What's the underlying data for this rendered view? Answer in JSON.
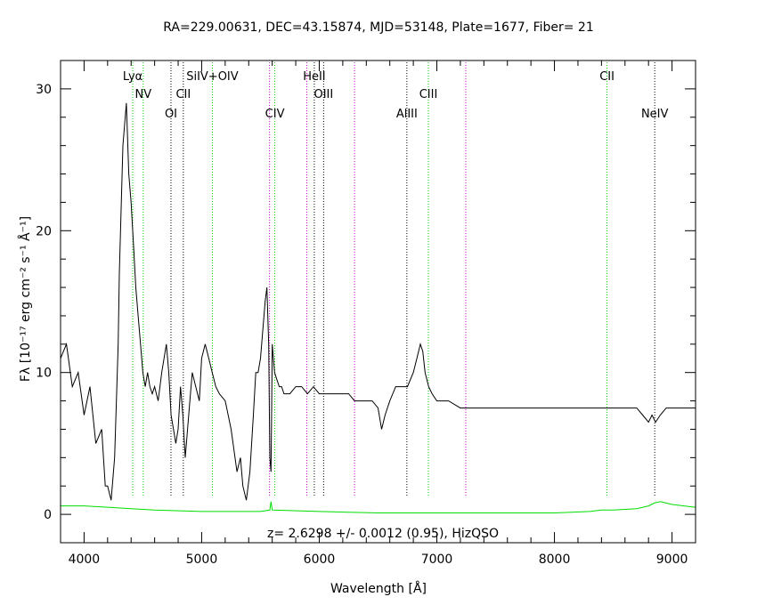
{
  "chart_data": {
    "type": "line",
    "title": "RA=229.00631, DEC=43.15874, MJD=53148, Plate=1677, Fiber= 21",
    "xlabel": "Wavelength [Å]",
    "ylabel": "Fλ [10⁻¹⁷ erg cm⁻² s⁻¹ Å⁻¹]",
    "annotation": "z= 2.6298 +/- 0.0012 (0.95), HizQSO",
    "xlim": [
      3800,
      9200
    ],
    "ylim": [
      -2,
      32
    ],
    "xticks": [
      4000,
      5000,
      6000,
      7000,
      8000,
      9000
    ],
    "yticks": [
      0,
      10,
      20,
      30
    ],
    "xtick_labels": [
      "4000",
      "5000",
      "6000",
      "7000",
      "8000",
      "9000"
    ],
    "ytick_labels": [
      "0",
      "10",
      "20",
      "30"
    ],
    "colors": {
      "spectrum": "#000000",
      "error": "#00dd00",
      "emission_line": "#00cc00",
      "absorption_line": "#000000",
      "sky_line": "#cc00cc"
    },
    "series": [
      {
        "x": [
          3800,
          3850,
          3900,
          3950,
          4000,
          4050,
          4100,
          4150,
          4180,
          4200,
          4230,
          4260,
          4290,
          4300,
          4330,
          4360,
          4380,
          4400,
          4420,
          4440,
          4460,
          4480,
          4500,
          4520,
          4540,
          4560,
          4580,
          4600,
          4630,
          4660,
          4700,
          4720,
          4740,
          4760,
          4780,
          4800,
          4820,
          4840,
          4860,
          4880,
          4900,
          4920,
          4950,
          4980,
          5000,
          5030,
          5060,
          5090,
          5120,
          5150,
          5200,
          5250,
          5300,
          5330,
          5350,
          5380,
          5410,
          5440,
          5460,
          5480,
          5500,
          5520,
          5540,
          5555,
          5570,
          5580,
          5590,
          5600,
          5610,
          5620,
          5640,
          5660,
          5680,
          5700,
          5750,
          5800,
          5850,
          5900,
          5950,
          6000,
          6050,
          6100,
          6150,
          6200,
          6250,
          6300,
          6350,
          6400,
          6450,
          6500,
          6530,
          6560,
          6600,
          6650,
          6700,
          6750,
          6800,
          6830,
          6860,
          6880,
          6900,
          6930,
          6960,
          7000,
          7050,
          7100,
          7200,
          7300,
          7400,
          7500,
          7600,
          7700,
          7800,
          7900,
          8000,
          8100,
          8200,
          8300,
          8400,
          8500,
          8600,
          8700,
          8750,
          8800,
          8830,
          8860,
          8900,
          8950,
          9000,
          9050,
          9100,
          9150,
          9200
        ],
        "values": [
          11.0,
          12.0,
          9.0,
          10.0,
          7.0,
          9.0,
          5.0,
          6.0,
          2.0,
          2.0,
          1.0,
          4.0,
          12.0,
          17.0,
          26.0,
          29.0,
          24.0,
          22.0,
          19.0,
          16.0,
          14.0,
          12.0,
          10.0,
          9.0,
          10.0,
          9.0,
          8.5,
          9.0,
          8.0,
          10.0,
          12.0,
          10.0,
          7.0,
          6.0,
          5.0,
          6.0,
          9.0,
          7.0,
          4.0,
          6.0,
          8.0,
          10.0,
          9.0,
          8.0,
          11.0,
          12.0,
          11.0,
          10.0,
          9.0,
          8.5,
          8.0,
          6.0,
          3.0,
          4.0,
          2.0,
          1.0,
          3.0,
          7.0,
          10.0,
          10.0,
          11.0,
          13.0,
          15.0,
          16.0,
          12.0,
          4.0,
          3.0,
          12.0,
          11.0,
          10.0,
          9.5,
          9.0,
          9.0,
          8.5,
          8.5,
          9.0,
          9.0,
          8.5,
          9.0,
          8.5,
          8.5,
          8.5,
          8.5,
          8.5,
          8.5,
          8.0,
          8.0,
          8.0,
          8.0,
          7.5,
          6.0,
          7.0,
          8.0,
          9.0,
          9.0,
          9.0,
          10.0,
          11.0,
          12.0,
          11.5,
          10.0,
          9.0,
          8.5,
          8.0,
          8.0,
          8.0,
          7.5,
          7.5,
          7.5,
          7.5,
          7.5,
          7.5,
          7.5,
          7.5,
          7.5,
          7.5,
          7.5,
          7.5,
          7.5,
          7.5,
          7.5,
          7.5,
          7.0,
          6.5,
          7.0,
          6.5,
          7.0,
          7.5,
          7.5,
          7.5,
          7.5,
          7.5,
          7.5
        ]
      },
      {
        "x": [
          3800,
          4000,
          4200,
          4400,
          4600,
          5000,
          5500,
          5580,
          5590,
          5600,
          6000,
          6500,
          7000,
          7500,
          8000,
          8300,
          8400,
          8500,
          8700,
          8800,
          8850,
          8900,
          8950,
          9000,
          9100,
          9200
        ],
        "values": [
          0.6,
          0.6,
          0.5,
          0.4,
          0.3,
          0.2,
          0.2,
          0.3,
          0.9,
          0.3,
          0.2,
          0.1,
          0.1,
          0.1,
          0.1,
          0.2,
          0.3,
          0.3,
          0.4,
          0.6,
          0.8,
          0.9,
          0.8,
          0.7,
          0.6,
          0.5
        ]
      }
    ],
    "lines": [
      {
        "label": "Lyα",
        "wavelength": 4414,
        "kind": "emission"
      },
      {
        "label": "NV",
        "wavelength": 4503,
        "kind": "emission"
      },
      {
        "label": "OI",
        "wavelength": 4739,
        "kind": "absorption"
      },
      {
        "label": "CII",
        "wavelength": 4844,
        "kind": "absorption"
      },
      {
        "label": "SiIV+OIV",
        "wavelength": 5091,
        "kind": "emission"
      },
      {
        "label": "CIV",
        "wavelength": 5622,
        "kind": "emission"
      },
      {
        "label": "HeII",
        "wavelength": 5958,
        "kind": "absorption"
      },
      {
        "label": "OIII",
        "wavelength": 6037,
        "kind": "absorption"
      },
      {
        "label": "AlIII",
        "wavelength": 6745,
        "kind": "absorption"
      },
      {
        "label": "CIII",
        "wavelength": 6928,
        "kind": "emission"
      },
      {
        "label": "CII",
        "wavelength": 8447,
        "kind": "emission"
      },
      {
        "label": "NeIV",
        "wavelength": 8853,
        "kind": "absorption"
      },
      {
        "label": "",
        "wavelength": 5577,
        "kind": "sky"
      },
      {
        "label": "",
        "wavelength": 5894,
        "kind": "sky"
      },
      {
        "label": "",
        "wavelength": 6300,
        "kind": "sky"
      },
      {
        "label": "",
        "wavelength": 7246,
        "kind": "sky"
      }
    ]
  }
}
